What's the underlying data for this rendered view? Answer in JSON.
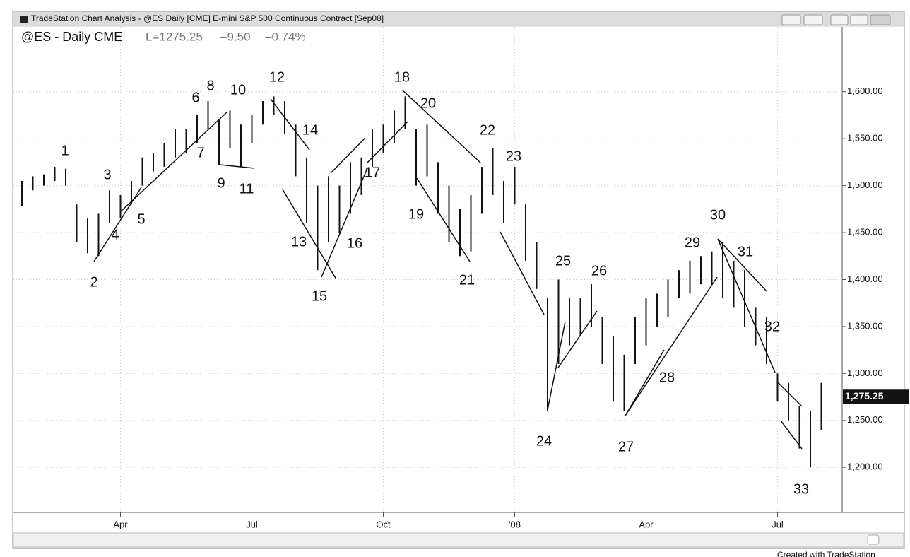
{
  "window": {
    "title": "TradeStation Chart Analysis - @ES Daily [CME] E-mini S&P 500 Continuous Contract [Sep08]",
    "footer": "Created with TradeStation"
  },
  "chart_data": {
    "type": "ohlc",
    "title": "@ES - Daily CME",
    "quote": [
      "L=1275.25",
      "–9.50",
      "–0.74%"
    ],
    "last": {
      "value": 1275.25,
      "label": "1,275.25"
    },
    "color": "#111111",
    "grid": true,
    "categories": [
      null,
      null,
      null,
      null,
      null,
      null,
      null,
      null,
      null,
      "Apr",
      null,
      null,
      null,
      null,
      null,
      null,
      null,
      null,
      null,
      null,
      null,
      "Jul",
      null,
      null,
      null,
      null,
      null,
      null,
      null,
      null,
      null,
      null,
      null,
      "Oct",
      null,
      null,
      null,
      null,
      null,
      null,
      null,
      null,
      null,
      null,
      null,
      "'08",
      null,
      null,
      null,
      null,
      null,
      null,
      null,
      null,
      null,
      null,
      null,
      "Apr",
      null,
      null,
      null,
      null,
      null,
      null,
      null,
      null,
      null,
      null,
      null,
      "Jul",
      null,
      null,
      null,
      null
    ],
    "high": [
      1505,
      1510,
      1512,
      1520,
      1518,
      1480,
      1465,
      1470,
      1495,
      1490,
      1505,
      1530,
      1535,
      1545,
      1560,
      1560,
      1575,
      1590,
      1570,
      1580,
      1565,
      1575,
      1590,
      1595,
      1590,
      1565,
      1530,
      1500,
      1510,
      1500,
      1525,
      1530,
      1560,
      1565,
      1580,
      1595,
      1560,
      1565,
      1525,
      1500,
      1475,
      1490,
      1520,
      1540,
      1505,
      1520,
      1480,
      1440,
      1380,
      1400,
      1380,
      1380,
      1395,
      1360,
      1340,
      1320,
      1360,
      1380,
      1385,
      1400,
      1410,
      1420,
      1425,
      1430,
      1440,
      1420,
      1410,
      1370,
      1360,
      1300,
      1290,
      1265,
      1260,
      1290
    ],
    "low": [
      1478,
      1495,
      1500,
      1505,
      1500,
      1440,
      1428,
      1425,
      1460,
      1465,
      1480,
      1500,
      1515,
      1520,
      1530,
      1535,
      1545,
      1560,
      1522,
      1540,
      1520,
      1545,
      1565,
      1575,
      1555,
      1510,
      1460,
      1410,
      1440,
      1450,
      1470,
      1490,
      1520,
      1535,
      1545,
      1560,
      1500,
      1510,
      1470,
      1440,
      1425,
      1430,
      1470,
      1490,
      1460,
      1480,
      1420,
      1390,
      1260,
      1310,
      1330,
      1340,
      1350,
      1310,
      1270,
      1260,
      1310,
      1330,
      1350,
      1360,
      1380,
      1385,
      1395,
      1395,
      1380,
      1370,
      1350,
      1330,
      1310,
      1270,
      1250,
      1220,
      1200,
      1240
    ],
    "ylim": [
      1152,
      1651
    ],
    "yticks": [
      {
        "value": 1200,
        "label": "1,200.00"
      },
      {
        "value": 1250,
        "label": "1,250.00"
      },
      {
        "value": 1300,
        "label": "1,300.00"
      },
      {
        "value": 1350,
        "label": "1,350.00"
      },
      {
        "value": 1400,
        "label": "1,400.00"
      },
      {
        "value": 1450,
        "label": "1,450.00"
      },
      {
        "value": 1500,
        "label": "1,500.00"
      },
      {
        "value": 1550,
        "label": "1,550.00"
      },
      {
        "value": 1600,
        "label": "1,600.00"
      }
    ],
    "annotations": [
      "1",
      "2",
      "3",
      "4",
      "5",
      "6",
      "7",
      "8",
      "9",
      "10",
      "11",
      "12",
      "13",
      "14",
      "15",
      "16",
      "17",
      "18",
      "19",
      "20",
      "21",
      "22",
      "23",
      "24",
      "25",
      "26",
      "27",
      "28",
      "29",
      "30",
      "31",
      "32",
      "33"
    ]
  }
}
